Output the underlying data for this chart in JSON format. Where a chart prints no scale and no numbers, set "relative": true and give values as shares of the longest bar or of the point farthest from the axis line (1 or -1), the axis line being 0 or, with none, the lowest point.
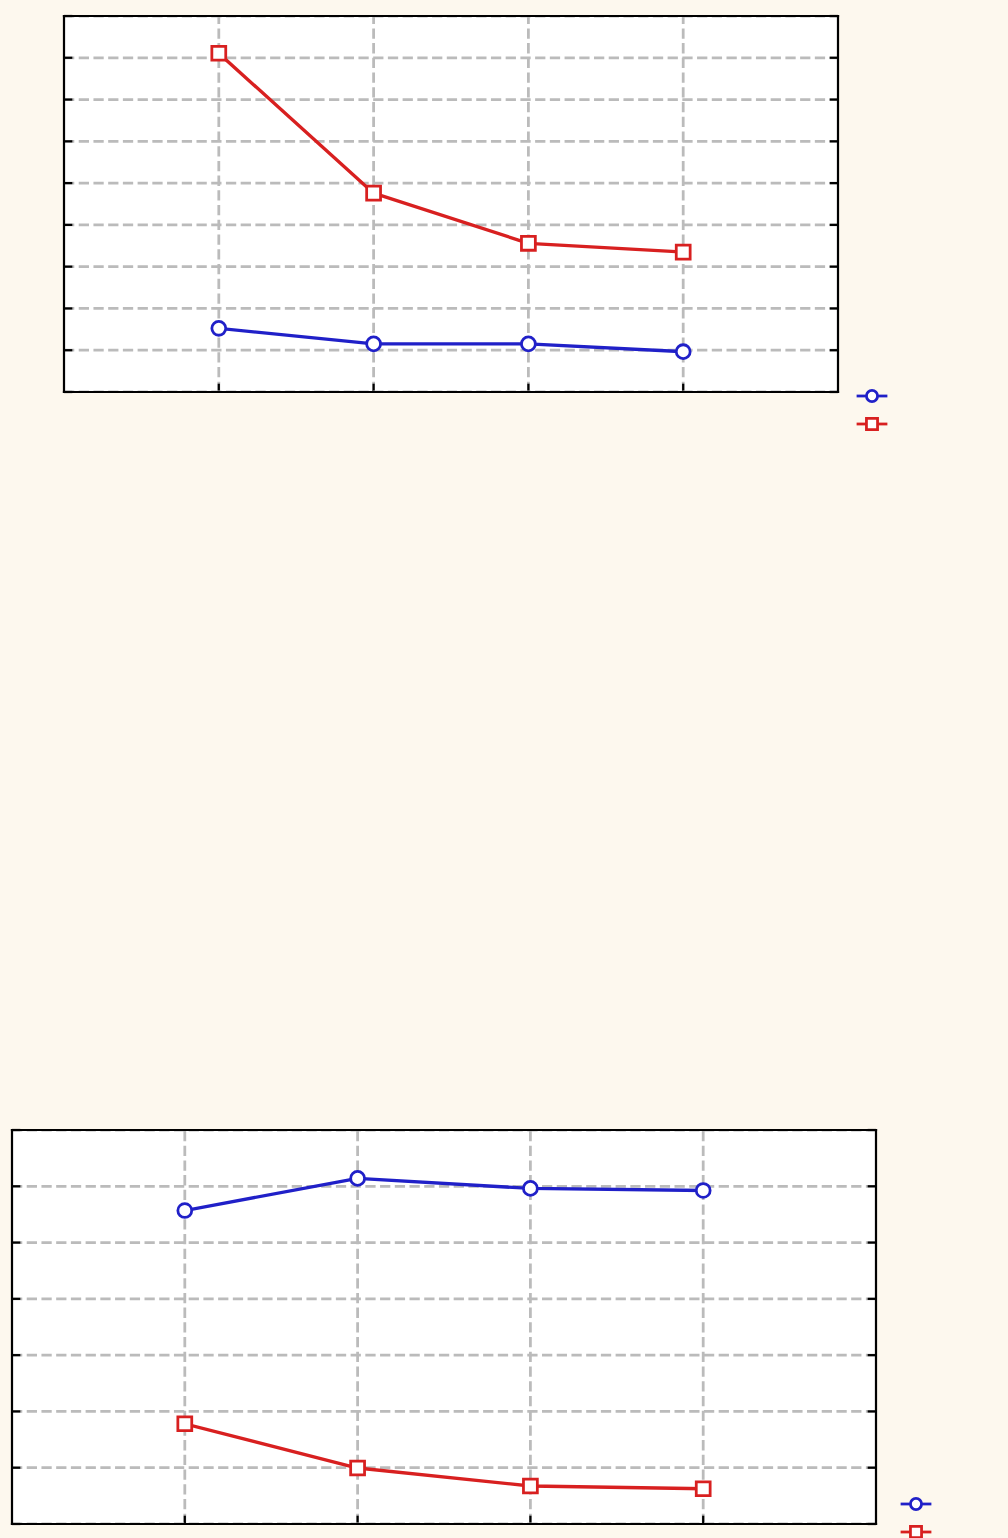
{
  "chart_data": [
    {
      "type": "line",
      "relative": true,
      "categories": [
        null,
        null,
        null,
        null
      ],
      "grid": true,
      "tick_labels": false,
      "series": [
        {
          "color": "#2020c8",
          "marker": "circle",
          "values": [
            0.188,
            0.142,
            0.142,
            0.119
          ]
        },
        {
          "color": "#d82020",
          "marker": "square",
          "values": [
            1,
            0.587,
            0.439,
            0.413
          ]
        }
      ]
    },
    {
      "type": "line",
      "relative": true,
      "categories": [
        null,
        null,
        null,
        null
      ],
      "grid": true,
      "tick_labels": false,
      "series": [
        {
          "color": "#2020c8",
          "marker": "circle",
          "values": [
            0.907,
            1,
            0.971,
            0.965
          ]
        },
        {
          "color": "#d82020",
          "marker": "square",
          "values": [
            0.29,
            0.162,
            0.11,
            0.102
          ]
        }
      ]
    }
  ]
}
